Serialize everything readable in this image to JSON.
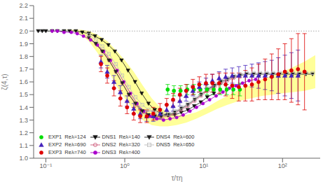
{
  "chart_data": {
    "type": "line",
    "xlabel": "τ/τη",
    "ylabel": "ζ(4,τ)",
    "log": "x",
    "xlim": [
      0.07,
      300
    ],
    "xticks": [
      {
        "value": 0.1,
        "label": "10⁻¹"
      },
      {
        "value": 1,
        "label": "10⁰"
      },
      {
        "value": 10,
        "label": "10¹"
      },
      {
        "value": 100,
        "label": "10²"
      }
    ],
    "ylim": [
      1.0,
      2.2
    ],
    "yticks": [
      {
        "value": 1,
        "label": "1.0"
      },
      1.1,
      1.2,
      1.3,
      1.4,
      1.5,
      1.6,
      1.7,
      1.8,
      1.9,
      {
        "value": 2,
        "label": "2.0"
      },
      2.1,
      2.2
    ],
    "grid": false,
    "legend": "lower left",
    "hline": {
      "y": 2.0,
      "color": "#aaaaaa",
      "line_style": "dotted"
    },
    "band": {
      "color": "#ffff99",
      "x": [
        0.08,
        0.1,
        0.13,
        0.17,
        0.22,
        0.28,
        0.35,
        0.45,
        0.6,
        0.8,
        1.0,
        1.3,
        1.7,
        2.2,
        2.8,
        3.5,
        4.5,
        6.0,
        8.0,
        11.0,
        15.0,
        20.0,
        28.0,
        40.0,
        55.0,
        75.0,
        100.0,
        140.0,
        190.0,
        260.0
      ],
      "upper": [
        2.01,
        2.01,
        2.01,
        2.01,
        2.01,
        2.01,
        2.0,
        1.97,
        1.92,
        1.84,
        1.77,
        1.68,
        1.57,
        1.47,
        1.4,
        1.36,
        1.34,
        1.34,
        1.36,
        1.4,
        1.45,
        1.49,
        1.54,
        1.58,
        1.62,
        1.65,
        1.68,
        1.72,
        1.76,
        1.81
      ],
      "lower": [
        2.01,
        2.01,
        2.01,
        2.01,
        2.0,
        1.97,
        1.92,
        1.83,
        1.7,
        1.56,
        1.47,
        1.38,
        1.3,
        1.26,
        1.25,
        1.25,
        1.26,
        1.28,
        1.31,
        1.35,
        1.39,
        1.42,
        1.45,
        1.47,
        1.49,
        1.5,
        1.51,
        1.52,
        1.53,
        1.55
      ]
    },
    "series": [
      {
        "name": "EXP1  Reλ=124",
        "type": "scatter",
        "color": "#00dd00",
        "marker": "circle",
        "x": [
          3.5,
          4.2,
          5.1,
          6.2,
          7.5,
          9.1,
          11.0,
          13.4,
          16.2,
          19.6,
          23.8,
          28.8
        ],
        "values": [
          1.54,
          1.53,
          1.53,
          1.54,
          1.54,
          1.54,
          1.54,
          1.54,
          1.54,
          1.54,
          1.54,
          1.54
        ],
        "yerr": [
          0.04,
          0.04,
          0.04,
          0.04,
          0.04,
          0.04,
          0.04,
          0.04,
          0.04,
          0.04,
          0.04,
          0.05
        ]
      },
      {
        "name": "EXP2  Reλ=690",
        "type": "scatter",
        "color": "#4422bb",
        "marker": "triangle",
        "x": [
          0.5,
          0.6,
          0.73,
          0.88,
          1.07,
          1.3,
          1.57,
          1.9,
          2.3,
          2.8,
          3.4,
          4.1,
          5.0,
          6.0,
          7.3,
          8.8,
          10.7,
          12.9,
          15.7,
          19.0,
          23.0,
          27.9,
          33.8,
          40.9,
          49.6,
          60.1,
          72.9,
          88.3,
          107.0,
          129.5,
          157.0
        ],
        "values": [
          1.76,
          1.68,
          1.6,
          1.52,
          1.45,
          1.39,
          1.35,
          1.33,
          1.33,
          1.35,
          1.38,
          1.41,
          1.45,
          1.49,
          1.53,
          1.56,
          1.59,
          1.61,
          1.63,
          1.64,
          1.65,
          1.65,
          1.65,
          1.65,
          1.65,
          1.65,
          1.65,
          1.65,
          1.65,
          1.65,
          1.65
        ],
        "yerr": [
          0.05,
          0.05,
          0.05,
          0.05,
          0.04,
          0.04,
          0.04,
          0.04,
          0.04,
          0.04,
          0.04,
          0.04,
          0.04,
          0.04,
          0.04,
          0.04,
          0.04,
          0.05,
          0.05,
          0.06,
          0.06,
          0.07,
          0.08,
          0.09,
          0.1,
          0.11,
          0.12,
          0.14,
          0.16,
          0.18,
          0.2
        ]
      },
      {
        "name": "EXP3  Reλ=740",
        "type": "scatter",
        "color": "#dd0000",
        "marker": "circle",
        "x": [
          0.5,
          0.6,
          0.73,
          0.88,
          1.07,
          1.3,
          1.57,
          1.9,
          2.3,
          2.8,
          3.4,
          4.1,
          5.0,
          6.0,
          7.3,
          8.8,
          10.7,
          12.9,
          15.7,
          19.0,
          23.0,
          27.9,
          33.8,
          40.9,
          49.6,
          60.1,
          72.9,
          88.3,
          107.0,
          129.5,
          157.0,
          190.0
        ],
        "values": [
          1.74,
          1.65,
          1.55,
          1.47,
          1.4,
          1.35,
          1.33,
          1.33,
          1.35,
          1.38,
          1.42,
          1.46,
          1.5,
          1.53,
          1.56,
          1.58,
          1.59,
          1.59,
          1.59,
          1.58,
          1.57,
          1.56,
          1.57,
          1.58,
          1.6,
          1.62,
          1.64,
          1.66,
          1.68,
          1.69,
          1.7,
          1.68
        ],
        "yerr": [
          0.06,
          0.06,
          0.06,
          0.06,
          0.05,
          0.05,
          0.05,
          0.05,
          0.05,
          0.05,
          0.05,
          0.05,
          0.05,
          0.05,
          0.06,
          0.06,
          0.07,
          0.07,
          0.08,
          0.09,
          0.1,
          0.11,
          0.12,
          0.13,
          0.14,
          0.16,
          0.18,
          0.2,
          0.22,
          0.25,
          0.28,
          0.3
        ]
      },
      {
        "name": "DNS1  Reλ=140",
        "type": "line",
        "color": "#111111",
        "marker": "triangle_down",
        "x": [
          0.08,
          0.09,
          0.1,
          0.12,
          0.14,
          0.17,
          0.2,
          0.24,
          0.29,
          0.35,
          0.42,
          0.51,
          0.62,
          0.75,
          0.91,
          1.1,
          1.35,
          1.64,
          2.0,
          2.4,
          2.9,
          3.5,
          4.3,
          5.2,
          6.3,
          7.6,
          9.2,
          11.1,
          13.5
        ],
        "values": [
          2.0,
          2.0,
          2.0,
          2.0,
          2.0,
          2.0,
          2.0,
          2.0,
          1.99,
          1.98,
          1.96,
          1.93,
          1.89,
          1.84,
          1.77,
          1.69,
          1.6,
          1.51,
          1.43,
          1.38,
          1.35,
          1.34,
          1.34,
          1.36,
          1.38,
          1.41,
          1.44,
          1.48,
          1.51
        ]
      },
      {
        "name": "DNS2  Reλ=320",
        "type": "line",
        "color": "#cc5577",
        "marker": "open_circle",
        "x": [
          0.35,
          0.43,
          0.52,
          0.63,
          0.77,
          0.93,
          1.13,
          1.37,
          1.67,
          2.0,
          2.4,
          2.9,
          3.6,
          4.3,
          5.2,
          6.3,
          7.7,
          9.3,
          11.3,
          13.7,
          16.6,
          20.0,
          24.0,
          29.0
        ],
        "values": [
          1.95,
          1.9,
          1.84,
          1.77,
          1.68,
          1.59,
          1.5,
          1.42,
          1.36,
          1.33,
          1.32,
          1.32,
          1.33,
          1.35,
          1.38,
          1.41,
          1.45,
          1.49,
          1.53,
          1.56,
          1.59,
          1.61,
          1.63,
          1.64
        ]
      },
      {
        "name": "DNS3  Reλ=400",
        "type": "line",
        "color": "#aa00cc",
        "marker": "circle",
        "x": [
          0.12,
          0.14,
          0.17,
          0.21,
          0.25,
          0.3,
          0.37,
          0.45,
          0.54,
          0.66,
          0.8,
          0.97,
          1.18,
          1.43,
          1.73,
          2.1,
          2.55,
          3.1,
          3.75,
          4.55,
          5.5,
          6.7,
          8.1,
          9.8,
          11.9,
          14.4,
          17.5,
          21.2,
          25.7,
          31.1,
          37.7,
          45.7
        ],
        "values": [
          2.0,
          2.0,
          1.99,
          1.99,
          1.98,
          1.96,
          1.93,
          1.89,
          1.84,
          1.77,
          1.69,
          1.6,
          1.51,
          1.43,
          1.37,
          1.33,
          1.31,
          1.3,
          1.31,
          1.32,
          1.34,
          1.37,
          1.4,
          1.43,
          1.46,
          1.49,
          1.52,
          1.55,
          1.57,
          1.59,
          1.61,
          1.62
        ]
      },
      {
        "name": "DNS4  Reλ=600",
        "type": "line",
        "color": "#222222",
        "marker": "triangle_down",
        "x": [
          0.35,
          0.43,
          0.52,
          0.63,
          0.77,
          0.93,
          1.13,
          1.37,
          1.67,
          2.0,
          2.4,
          2.9,
          3.6,
          4.3,
          5.2,
          6.3,
          7.7,
          9.3,
          11.3,
          13.7,
          16.6,
          20.0,
          24.0,
          29.0,
          35.0,
          43.0,
          52.0,
          63.0,
          76.0,
          92.0,
          112.0,
          135.0,
          164.0,
          198.0,
          240.0
        ],
        "values": [
          1.95,
          1.9,
          1.84,
          1.77,
          1.68,
          1.59,
          1.5,
          1.43,
          1.37,
          1.34,
          1.33,
          1.33,
          1.34,
          1.36,
          1.39,
          1.42,
          1.46,
          1.5,
          1.54,
          1.57,
          1.6,
          1.62,
          1.64,
          1.65,
          1.66,
          1.66,
          1.66,
          1.66,
          1.66,
          1.66,
          1.66,
          1.66,
          1.66,
          1.66,
          1.66
        ]
      },
      {
        "name": "DNS5  Reλ=650",
        "type": "line",
        "color": "#bbbbbb",
        "marker": "open_square",
        "x": [
          0.35,
          0.43,
          0.52,
          0.63,
          0.77,
          0.93,
          1.13,
          1.37,
          1.67,
          2.0,
          2.4,
          2.9,
          3.6,
          4.3,
          5.2,
          6.3,
          7.7,
          9.3,
          11.3,
          13.7,
          16.6,
          20.0,
          24.0,
          29.0,
          35.0,
          43.0,
          52.0,
          63.0,
          76.0,
          92.0,
          112.0,
          135.0,
          164.0,
          198.0,
          240.0
        ],
        "values": [
          1.97,
          1.93,
          1.88,
          1.82,
          1.74,
          1.65,
          1.56,
          1.48,
          1.42,
          1.38,
          1.36,
          1.35,
          1.35,
          1.37,
          1.4,
          1.43,
          1.47,
          1.51,
          1.55,
          1.58,
          1.61,
          1.63,
          1.65,
          1.66,
          1.67,
          1.67,
          1.67,
          1.67,
          1.67,
          1.67,
          1.67,
          1.67,
          1.67,
          1.67,
          1.67
        ]
      }
    ]
  }
}
